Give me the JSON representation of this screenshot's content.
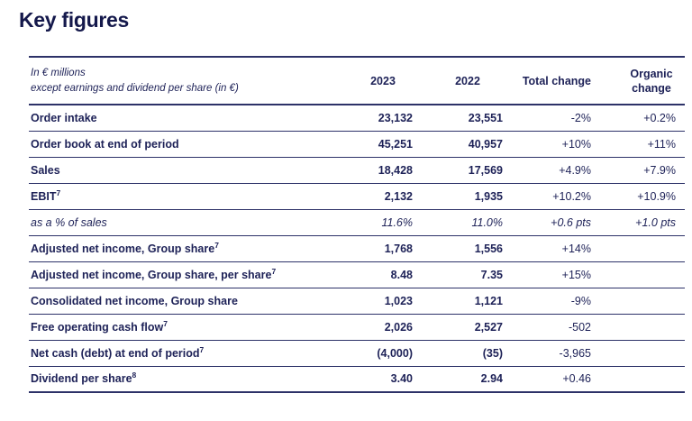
{
  "page_title": "Key figures",
  "colors": {
    "text_navy": "#1d2157",
    "line_navy": "#2d3268",
    "title_navy": "#14184b",
    "background": "#ffffff"
  },
  "table": {
    "unit_note_line1": "In € millions",
    "unit_note_line2": "except earnings and dividend per share (in €)",
    "columns": [
      "2023",
      "2022",
      "Total change",
      "Organic change"
    ],
    "rows": [
      {
        "label": "Order intake",
        "y2023": "23,132",
        "y2022": "23,551",
        "total_change": "-2%",
        "organic_change": "+0.2%"
      },
      {
        "label": "Order book at end of period",
        "y2023": "45,251",
        "y2022": "40,957",
        "total_change": "+10%",
        "organic_change": "+11%"
      },
      {
        "label": "Sales",
        "y2023": "18,428",
        "y2022": "17,569",
        "total_change": "+4.9%",
        "organic_change": "+7.9%"
      },
      {
        "label": "EBIT",
        "footnote": "7",
        "y2023": "2,132",
        "y2022": "1,935",
        "total_change": "+10.2%",
        "organic_change": "+10.9%"
      },
      {
        "label": "as a % of sales",
        "style": "italic",
        "y2023": "11.6%",
        "y2022": "11.0%",
        "total_change": "+0.6 pts",
        "organic_change": "+1.0 pts"
      },
      {
        "label": "Adjusted net income, Group share",
        "footnote": "7",
        "y2023": "1,768",
        "y2022": "1,556",
        "total_change": "+14%",
        "organic_change": ""
      },
      {
        "label": "Adjusted net income, Group share, per share",
        "footnote": "7",
        "y2023": "8.48",
        "y2022": "7.35",
        "total_change": "+15%",
        "organic_change": ""
      },
      {
        "label": "Consolidated net income, Group share",
        "y2023": "1,023",
        "y2022": "1,121",
        "total_change": "-9%",
        "organic_change": ""
      },
      {
        "label": "Free operating cash flow",
        "footnote": "7",
        "y2023": "2,026",
        "y2022": "2,527",
        "total_change": "-502",
        "organic_change": ""
      },
      {
        "label": "Net cash (debt) at end of period",
        "footnote": "7",
        "y2023": "(4,000)",
        "y2022": "(35)",
        "total_change": "-3,965",
        "organic_change": ""
      },
      {
        "label": "Dividend per share",
        "footnote": "8",
        "y2023": "3.40",
        "y2022": "2.94",
        "total_change": "+0.46",
        "organic_change": ""
      }
    ]
  }
}
